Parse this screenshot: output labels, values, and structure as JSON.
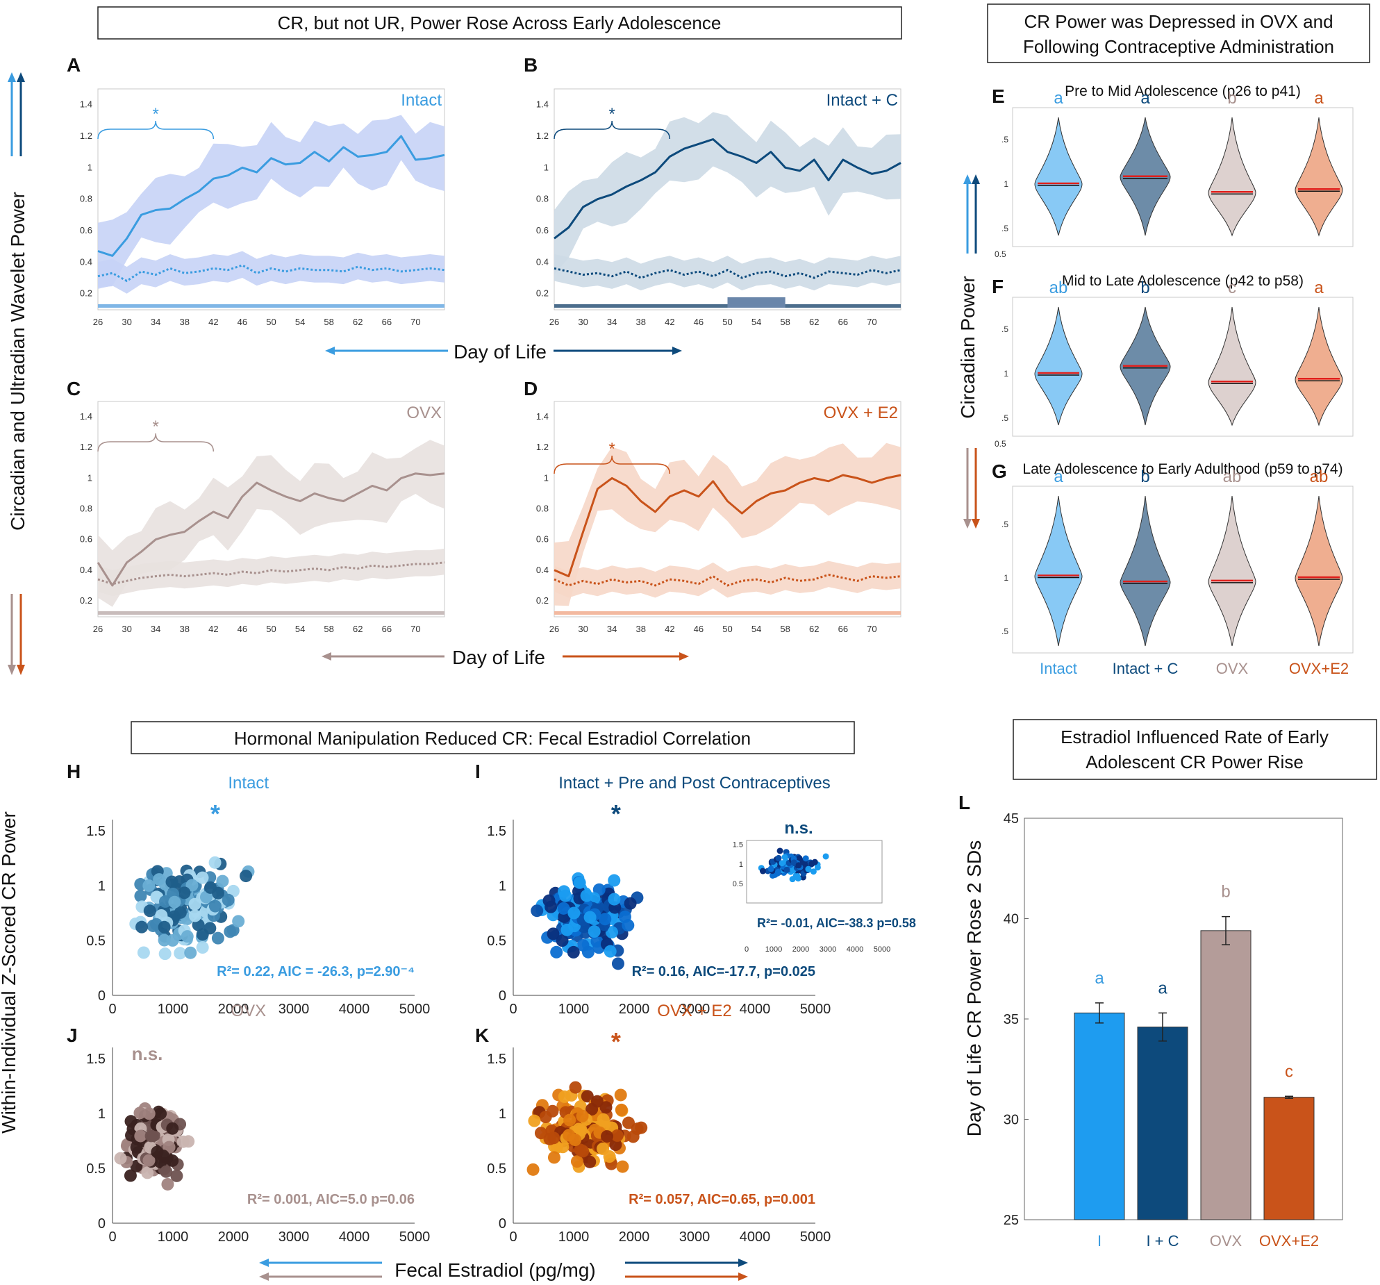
{
  "colors": {
    "intact": "#3a9ce0",
    "intact_c": "#0d4a7c",
    "ovx": "#a8918e",
    "ovx_e2": "#c9531a",
    "mean_line": "#e0201c"
  },
  "titles": {
    "top_left": "CR, but not UR, Power Rose Across Early Adolescence",
    "top_right_1": "CR Power was Depressed in OVX and",
    "top_right_2": "Following Contraceptive Administration",
    "bottom_left": "Hormonal Manipulation Reduced CR: Fecal Estradiol Correlation",
    "bottom_right_1": "Estradiol Influenced Rate of Early",
    "bottom_right_2": "Adolescent CR Power Rise"
  },
  "axis_labels": {
    "wavelet_power": "Circadian and Ultradian Wavelet Power",
    "day_of_life": "Day of Life",
    "circadian_power": "Circadian Power",
    "z_scored": "Within-Individual Z-Scored CR Power",
    "fecal_estradiol": "Fecal Estradiol (pg/mg)",
    "rose_2sd": "Day of Life CR Power Rose 2 SDs"
  },
  "panel_letters": [
    "A",
    "B",
    "C",
    "D",
    "E",
    "F",
    "G",
    "H",
    "I",
    "J",
    "K",
    "L"
  ],
  "chart_data": [
    {
      "id": "wavelet",
      "type": "line",
      "xlabel": "Day of Life",
      "ylabel": "Circadian and Ultradian Wavelet Power",
      "xlim": [
        26,
        74
      ],
      "ylim": [
        0.15,
        1.5
      ],
      "x_ticks": [
        "26",
        "30",
        "34",
        "38",
        "42",
        "46",
        "50",
        "54",
        "58",
        "62",
        "66",
        "70"
      ],
      "y_ticks": [
        "0.2",
        "0.4",
        "0.6",
        "0.8",
        "1",
        "1.2",
        "1.4"
      ],
      "significance": "*",
      "panels": [
        {
          "letter": "A",
          "label": "Intact",
          "color": "#3a9ce0",
          "band": "#c7d3f6",
          "cr": [
            0.47,
            0.44,
            0.55,
            0.7,
            0.73,
            0.74,
            0.8,
            0.85,
            0.93,
            0.95,
            1.0,
            0.97,
            1.06,
            1.02,
            1.03,
            1.1,
            1.04,
            1.13,
            1.07,
            1.08,
            1.1,
            1.2,
            1.05,
            1.06,
            1.08
          ],
          "ur": [
            0.31,
            0.33,
            0.28,
            0.34,
            0.32,
            0.36,
            0.33,
            0.34,
            0.36,
            0.35,
            0.38,
            0.33,
            0.36,
            0.34,
            0.36,
            0.35,
            0.35,
            0.34,
            0.37,
            0.35,
            0.36,
            0.34,
            0.35,
            0.36,
            0.35
          ]
        },
        {
          "letter": "B",
          "label": "Intact + C",
          "color": "#0d4a7c",
          "band": "#cddae6",
          "cr": [
            0.55,
            0.62,
            0.75,
            0.8,
            0.83,
            0.88,
            0.92,
            0.97,
            1.07,
            1.12,
            1.15,
            1.18,
            1.1,
            1.07,
            1.03,
            1.1,
            1.0,
            0.98,
            1.05,
            0.92,
            1.05,
            1.0,
            0.96,
            0.98,
            1.03
          ],
          "ur": [
            0.36,
            0.34,
            0.32,
            0.33,
            0.31,
            0.34,
            0.3,
            0.33,
            0.35,
            0.32,
            0.34,
            0.31,
            0.35,
            0.3,
            0.33,
            0.34,
            0.31,
            0.33,
            0.3,
            0.34,
            0.33,
            0.32,
            0.35,
            0.33,
            0.35
          ]
        },
        {
          "letter": "C",
          "label": "OVX",
          "color": "#a8918e",
          "band": "#e8e1df",
          "cr": [
            0.45,
            0.3,
            0.45,
            0.52,
            0.6,
            0.63,
            0.65,
            0.72,
            0.78,
            0.74,
            0.88,
            0.97,
            0.92,
            0.88,
            0.85,
            0.9,
            0.87,
            0.85,
            0.9,
            0.95,
            0.92,
            1.0,
            1.03,
            1.02,
            1.03
          ],
          "ur": [
            0.34,
            0.31,
            0.33,
            0.35,
            0.36,
            0.37,
            0.36,
            0.37,
            0.38,
            0.37,
            0.39,
            0.38,
            0.4,
            0.39,
            0.4,
            0.41,
            0.4,
            0.42,
            0.41,
            0.43,
            0.42,
            0.43,
            0.44,
            0.44,
            0.45
          ]
        },
        {
          "letter": "D",
          "label": "OVX + E2",
          "color": "#c9531a",
          "band": "#f6d7c8",
          "cr": [
            0.4,
            0.36,
            0.65,
            0.93,
            1.0,
            0.95,
            0.85,
            0.78,
            0.88,
            0.92,
            0.88,
            0.98,
            0.85,
            0.77,
            0.85,
            0.9,
            0.92,
            0.97,
            1.0,
            0.98,
            1.02,
            1.0,
            0.97,
            1.0,
            1.02
          ],
          "ur": [
            0.34,
            0.3,
            0.33,
            0.31,
            0.34,
            0.32,
            0.33,
            0.3,
            0.34,
            0.33,
            0.31,
            0.36,
            0.3,
            0.33,
            0.34,
            0.32,
            0.35,
            0.33,
            0.34,
            0.37,
            0.35,
            0.33,
            0.36,
            0.35,
            0.36
          ]
        }
      ]
    },
    {
      "id": "violins",
      "type": "violin",
      "ylabel": "Circadian Power",
      "y_ticks": [
        ".5",
        "1",
        ".5"
      ],
      "y_bottom_label": "0.5",
      "groups": [
        "Intact",
        "Intact + C",
        "OVX",
        "OVX+E2"
      ],
      "panels": [
        {
          "letter": "E",
          "title": "Pre to Mid Adolescence (p26 to p41)",
          "letters": [
            "a",
            "a",
            "b",
            "a"
          ],
          "medians": [
            1.0,
            1.1,
            0.88,
            0.92
          ]
        },
        {
          "letter": "F",
          "title": "Mid to Late Adolescence (p42 to p58)",
          "letters": [
            "ab",
            "b",
            "c",
            "a"
          ],
          "medians": [
            1.0,
            1.1,
            0.88,
            0.92
          ]
        },
        {
          "letter": "G",
          "title": "Late Adolescence to Early Adulthood (p59 to p74)",
          "letters": [
            "a",
            "b",
            "ab",
            "ab"
          ],
          "medians": [
            1.02,
            0.95,
            0.96,
            1.0
          ]
        }
      ]
    },
    {
      "id": "scatters",
      "type": "scatter",
      "xlabel": "Fecal Estradiol (pg/mg)",
      "ylabel": "Within-Individual Z-Scored CR Power",
      "xlim": [
        0,
        5000
      ],
      "ylim": [
        0,
        1.6
      ],
      "x_ticks": [
        "0",
        "1000",
        "2000",
        "3000",
        "4000",
        "5000"
      ],
      "y_ticks": [
        "0",
        "0.5",
        "1",
        "1.5"
      ],
      "panels": [
        {
          "letter": "H",
          "title": "Intact",
          "sig": "*",
          "stats": "R²= 0.22, AIC = -26.3, p=2.90⁻⁴",
          "palette": [
            "#a8d8f0",
            "#6aaed4",
            "#3f86b3",
            "#1f5e8a"
          ],
          "xmean": 1300,
          "xsd": 700,
          "ymean": 0.82,
          "ysd": 0.32
        },
        {
          "letter": "I",
          "title": "Intact + Pre and Post Contraceptives",
          "sig": "*",
          "stats": "R²= 0.16, AIC=-17.7, p=0.025",
          "palette": [
            "#1a9cf0",
            "#0b6ed1",
            "#0a4fa8",
            "#0a2f7c"
          ],
          "xmean": 1200,
          "xsd": 650,
          "ymean": 0.72,
          "ysd": 0.3
        },
        {
          "letter": "J",
          "title": "OVX",
          "sig": "n.s.",
          "stats": "R²= 0.001, AIC=5.0 p=0.06",
          "palette": [
            "#c9b4b0",
            "#a08380",
            "#6e5250",
            "#3a2220"
          ],
          "xmean": 700,
          "xsd": 400,
          "ymean": 0.72,
          "ysd": 0.28
        },
        {
          "letter": "K",
          "title": "OVX + E2",
          "sig": "*",
          "stats": "R²= 0.057, AIC=0.65, p=0.001",
          "palette": [
            "#f0a020",
            "#e07a10",
            "#b84a0a",
            "#8a2a08"
          ],
          "xmean": 1200,
          "xsd": 650,
          "ymean": 0.85,
          "ysd": 0.3
        }
      ],
      "inset": {
        "sig": "n.s.",
        "stats": "R²= -0.01, AIC=-38.3 p=0.58",
        "x_ticks": [
          "0",
          "1000",
          "2000",
          "3000",
          "4000",
          "5000"
        ],
        "y_ticks": [
          "0.5",
          "1",
          "1.5"
        ]
      }
    },
    {
      "id": "bars",
      "type": "bar",
      "ylabel": "Day of Life CR Power Rose 2 SDs",
      "categories": [
        "I",
        "I + C",
        "OVX",
        "OVX+E2"
      ],
      "values": [
        35.3,
        34.6,
        39.4,
        31.1
      ],
      "errors": [
        0.5,
        0.7,
        0.7,
        0.05
      ],
      "letters": [
        "a",
        "a",
        "b",
        "c"
      ],
      "ylim": [
        25,
        45
      ],
      "y_ticks": [
        "25",
        "30",
        "35",
        "40",
        "45"
      ]
    }
  ]
}
